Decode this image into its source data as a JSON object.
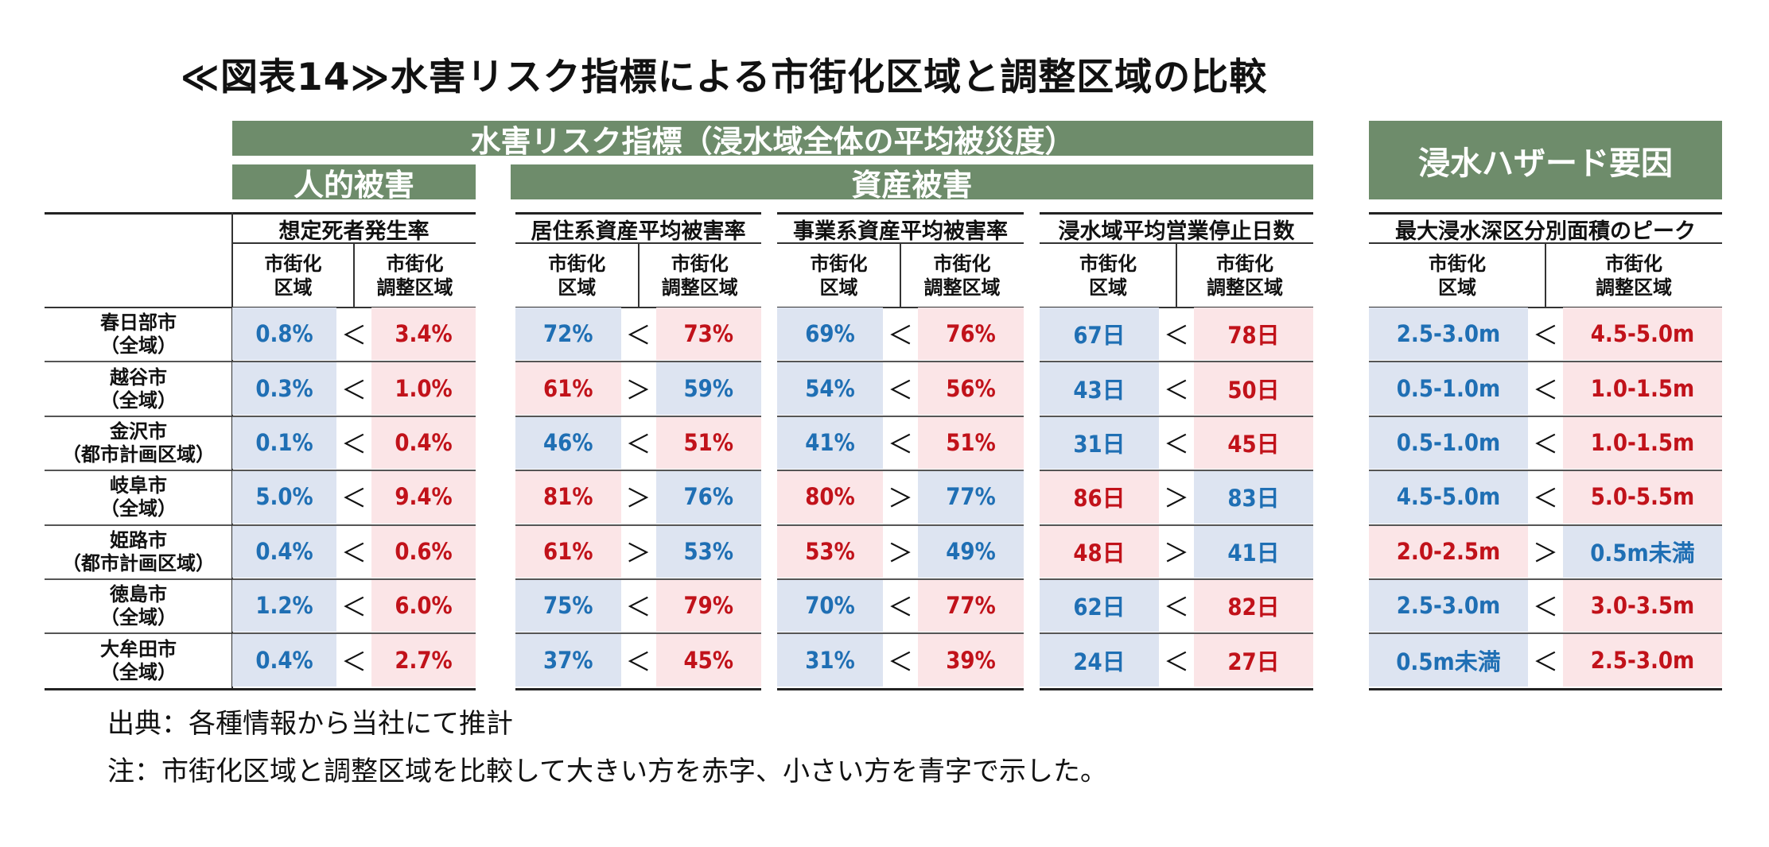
{
  "title": "≪図表14≫水害リスク指標による市街化区域と調整区域の比較",
  "header_risk": "水害リスク指標（浸水域全体の平均被災度）",
  "header_human": "人的被害",
  "header_asset": "資産被害",
  "header_hazard": "浸水ハザード要因",
  "metrics": [
    "想定死者発生率",
    "居住系資産平均被害率",
    "事業系資産平均被害率",
    "浸水域平均営業停止日数",
    "最大浸水深区分別面積のピーク"
  ],
  "col_a": [
    "市街化",
    "区域"
  ],
  "col_b": [
    "市街化",
    "調整区域"
  ],
  "cities": [
    [
      "春日部市",
      "（全域）"
    ],
    [
      "越谷市",
      "（全域）"
    ],
    [
      "金沢市",
      "（都市計画区域）"
    ],
    [
      "岐阜市",
      "（全域）"
    ],
    [
      "姫路市",
      "（都市計画区域）"
    ],
    [
      "徳島市",
      "（全域）"
    ],
    [
      "大牟田市",
      "（全域）"
    ]
  ],
  "colors": {
    "red_text": "#c1121a",
    "red_bg": "#fbe5e7",
    "blue_text": "#1f6fb4",
    "blue_bg": "#dde4f1",
    "header_green": "#6e8c6b"
  },
  "chart_data": {
    "type": "table",
    "groups": [
      {
        "metric": "想定死者発生率",
        "unit": "%",
        "rows": [
          {
            "a": "0.8%",
            "op": "<",
            "b": "3.4%"
          },
          {
            "a": "0.3%",
            "op": "<",
            "b": "1.0%"
          },
          {
            "a": "0.1%",
            "op": "<",
            "b": "0.4%"
          },
          {
            "a": "5.0%",
            "op": "<",
            "b": "9.4%"
          },
          {
            "a": "0.4%",
            "op": "<",
            "b": "0.6%"
          },
          {
            "a": "1.2%",
            "op": "<",
            "b": "6.0%"
          },
          {
            "a": "0.4%",
            "op": "<",
            "b": "2.7%"
          }
        ]
      },
      {
        "metric": "居住系資産平均被害率",
        "unit": "%",
        "rows": [
          {
            "a": "72%",
            "op": "<",
            "b": "73%"
          },
          {
            "a": "61%",
            "op": ">",
            "b": "59%"
          },
          {
            "a": "46%",
            "op": "<",
            "b": "51%"
          },
          {
            "a": "81%",
            "op": ">",
            "b": "76%"
          },
          {
            "a": "61%",
            "op": ">",
            "b": "53%"
          },
          {
            "a": "75%",
            "op": "<",
            "b": "79%"
          },
          {
            "a": "37%",
            "op": "<",
            "b": "45%"
          }
        ]
      },
      {
        "metric": "事業系資産平均被害率",
        "unit": "%",
        "rows": [
          {
            "a": "69%",
            "op": "<",
            "b": "76%"
          },
          {
            "a": "54%",
            "op": "<",
            "b": "56%"
          },
          {
            "a": "41%",
            "op": "<",
            "b": "51%"
          },
          {
            "a": "80%",
            "op": ">",
            "b": "77%"
          },
          {
            "a": "53%",
            "op": ">",
            "b": "49%"
          },
          {
            "a": "70%",
            "op": "<",
            "b": "77%"
          },
          {
            "a": "31%",
            "op": "<",
            "b": "39%"
          }
        ]
      },
      {
        "metric": "浸水域平均営業停止日数",
        "unit": "日",
        "rows": [
          {
            "a": "67日",
            "op": "<",
            "b": "78日"
          },
          {
            "a": "43日",
            "op": "<",
            "b": "50日"
          },
          {
            "a": "31日",
            "op": "<",
            "b": "45日"
          },
          {
            "a": "86日",
            "op": ">",
            "b": "83日"
          },
          {
            "a": "48日",
            "op": ">",
            "b": "41日"
          },
          {
            "a": "62日",
            "op": "<",
            "b": "82日"
          },
          {
            "a": "24日",
            "op": "<",
            "b": "27日"
          }
        ]
      },
      {
        "metric": "最大浸水深区分別面積のピーク",
        "unit": "m",
        "rows": [
          {
            "a": "2.5-3.0m",
            "op": "<",
            "b": "4.5-5.0m"
          },
          {
            "a": "0.5-1.0m",
            "op": "<",
            "b": "1.0-1.5m"
          },
          {
            "a": "0.5-1.0m",
            "op": "<",
            "b": "1.0-1.5m"
          },
          {
            "a": "4.5-5.0m",
            "op": "<",
            "b": "5.0-5.5m"
          },
          {
            "a": "2.0-2.5m",
            "op": ">",
            "b": "0.5m未満"
          },
          {
            "a": "2.5-3.0m",
            "op": "<",
            "b": "3.0-3.5m"
          },
          {
            "a": "0.5m未満",
            "op": "<",
            "b": "2.5-3.0m"
          }
        ]
      }
    ]
  },
  "notes": {
    "source": "出典：各種情報から当社にて推計",
    "note": "注：市街化区域と調整区域を比較して大きい方を赤字、小さい方を青字で示した。"
  }
}
